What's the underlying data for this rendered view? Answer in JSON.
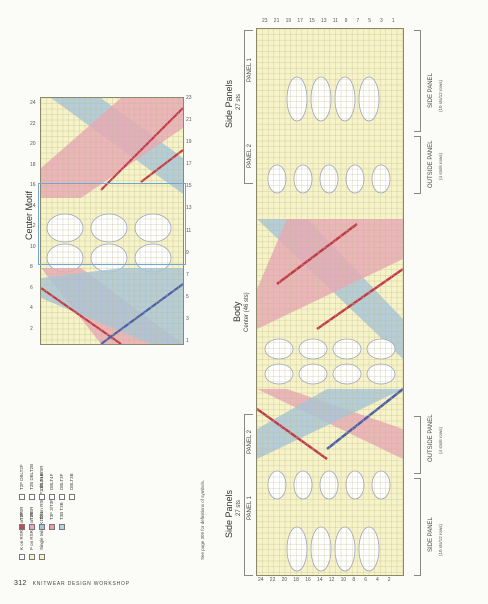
{
  "footer": {
    "page_number": "312",
    "book_title": "KNITWEAR DESIGN WORKSHOP"
  },
  "center_motif": {
    "title": "Center Motif",
    "row_numbers_right": [
      "23",
      "21",
      "19",
      "17",
      "15",
      "13",
      "11",
      "9",
      "7",
      "5",
      "3",
      "1"
    ],
    "row_numbers_left": [
      "24",
      "22",
      "20",
      "18",
      "16",
      "14",
      "12",
      "10",
      "8",
      "6",
      "4",
      "2"
    ]
  },
  "body": {
    "title": "Body",
    "subtitle": "Center (46 sts)"
  },
  "side_panels_top": {
    "title": "Side Panels",
    "subtitle": "27 sts",
    "panel1": "PANEL 1",
    "panel2": "PANEL 2",
    "side_panel": "SIDE PANEL",
    "side_panel_sub": "(10 sts/12 rows)",
    "outside_panel": "OUTSIDE PANEL",
    "outside_panel_sub": "(4 sts/6 rows)"
  },
  "side_panels_bottom": {
    "title": "Side Panels",
    "subtitle": "27 sts",
    "panel1": "PANEL 1",
    "panel2": "PANEL 2",
    "side_panel": "SIDE PANEL",
    "side_panel_sub": "(10 sts/12 rows)",
    "outside_panel": "OUTSIDE PANEL",
    "outside_panel_sub": "(4 sts/6 rows)"
  },
  "big_chart": {
    "row_numbers_left": [
      "24",
      "22",
      "20",
      "18",
      "16",
      "14",
      "12",
      "10",
      "8",
      "6",
      "4",
      "2"
    ],
    "row_numbers_right": [
      "23",
      "21",
      "19",
      "17",
      "15",
      "13",
      "11",
      "9",
      "7",
      "5",
      "3",
      "1"
    ]
  },
  "legend": {
    "items": [
      {
        "text": "K on RSR; P on WSR",
        "color": "#ffffff"
      },
      {
        "text": "P on RSR; K on WSR",
        "color": "#f7f3c9"
      },
      {
        "text": "Single twist: K1tbl on RSR; P1 tbl on WSR",
        "color": "#f7f3c9"
      },
      {
        "text": "T2F",
        "color": "#c44a58"
      },
      {
        "text": "T2B",
        "color": "#e9a9b6"
      },
      {
        "text": "T2B",
        "color": "#a9c6d9"
      },
      {
        "text": "T3F  3/T3F",
        "color": "#e8a0b0"
      },
      {
        "text": "T3B  T3B",
        "color": "#bdd2e0"
      },
      {
        "text": "T2F  DBLT2F",
        "color": "#ffffff"
      },
      {
        "text": "T2B  DBLT2B",
        "color": "#ffffff"
      },
      {
        "text": "DBLT4B",
        "color": "#ffffff"
      },
      {
        "text": "DBLT4F",
        "color": "#ffffff"
      },
      {
        "text": "DBLT3F",
        "color": "#ffffff"
      },
      {
        "text": "DBLT3B",
        "color": "#ffffff"
      }
    ],
    "note": "See page 309 for definitions of symbols."
  },
  "colors": {
    "paper": "#fbfbf8",
    "cream": "#f7f3c9",
    "pink": "#e9a9b6",
    "blue": "#a9c6d9",
    "red": "#c23a4a",
    "navy": "#4a5fa6",
    "grid": "#9b9b7a",
    "select_box": "#6fa8d6"
  }
}
